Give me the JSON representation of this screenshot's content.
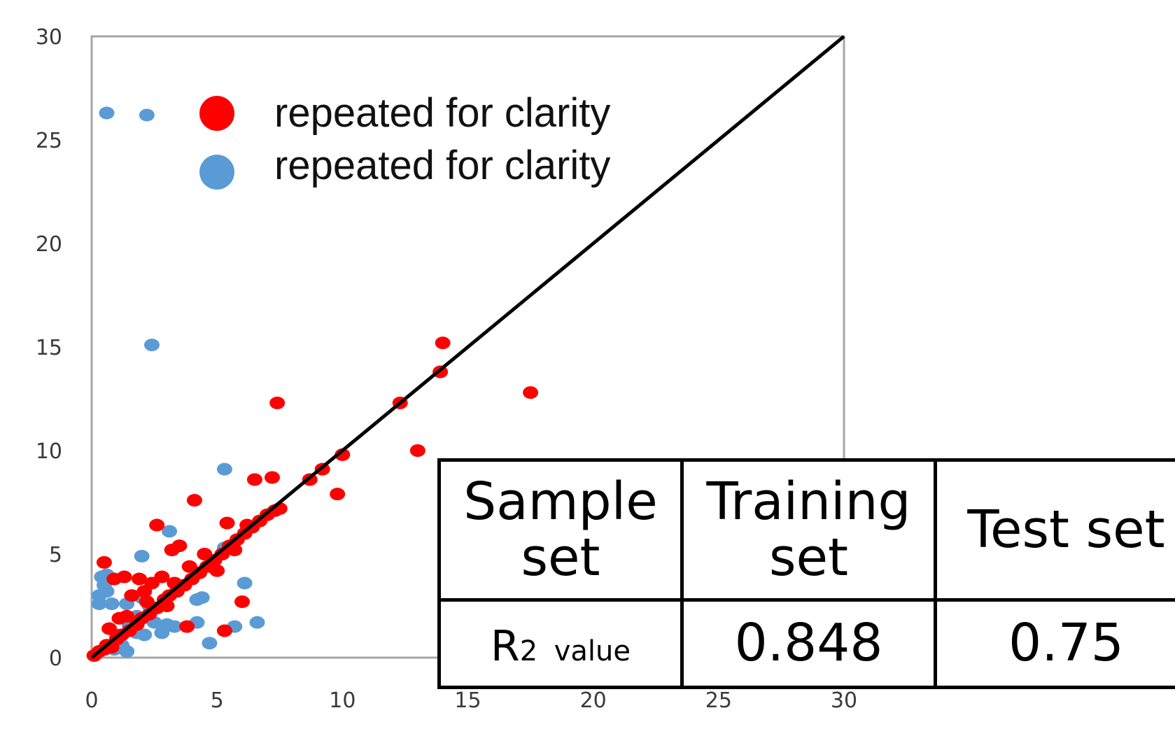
{
  "chart_data": {
    "type": "scatter",
    "title": "",
    "xlabel": "",
    "ylabel": "",
    "xlim": [
      0,
      30
    ],
    "ylim": [
      0,
      30
    ],
    "xticks": [
      "0",
      "5",
      "10",
      "15",
      "20",
      "25",
      "30"
    ],
    "yticks": [
      "0",
      "5",
      "10",
      "15",
      "20",
      "25",
      "30"
    ],
    "grid": false,
    "legend_position": "top-left",
    "reference_line": {
      "x": [
        0,
        30
      ],
      "y": [
        0,
        30
      ],
      "color": "#000000"
    },
    "series": [
      {
        "name": "repeated for clarity",
        "color": "#ff0000",
        "points": [
          [
            0.1,
            0.1
          ],
          [
            0.3,
            0.3
          ],
          [
            0.5,
            0.4
          ],
          [
            0.6,
            0.6
          ],
          [
            0.8,
            0.5
          ],
          [
            1.0,
            0.9
          ],
          [
            1.2,
            1.1
          ],
          [
            1.5,
            1.3
          ],
          [
            1.8,
            1.6
          ],
          [
            2.0,
            1.9
          ],
          [
            2.3,
            2.1
          ],
          [
            2.6,
            2.4
          ],
          [
            2.9,
            2.8
          ],
          [
            3.1,
            3.0
          ],
          [
            3.4,
            3.2
          ],
          [
            3.7,
            3.5
          ],
          [
            4.0,
            3.8
          ],
          [
            4.3,
            4.1
          ],
          [
            4.6,
            4.4
          ],
          [
            4.9,
            4.7
          ],
          [
            5.2,
            5.0
          ],
          [
            5.5,
            5.4
          ],
          [
            5.8,
            5.7
          ],
          [
            6.1,
            6.0
          ],
          [
            6.4,
            6.3
          ],
          [
            6.7,
            6.6
          ],
          [
            7.0,
            6.9
          ],
          [
            7.3,
            7.1
          ],
          [
            7.5,
            7.2
          ],
          [
            0.5,
            4.6
          ],
          [
            0.9,
            3.8
          ],
          [
            1.1,
            1.9
          ],
          [
            1.3,
            3.9
          ],
          [
            1.6,
            3.0
          ],
          [
            1.9,
            3.8
          ],
          [
            2.1,
            3.2
          ],
          [
            2.4,
            3.6
          ],
          [
            2.6,
            6.4
          ],
          [
            2.8,
            3.9
          ],
          [
            3.0,
            2.5
          ],
          [
            3.2,
            5.2
          ],
          [
            3.5,
            5.4
          ],
          [
            3.9,
            4.4
          ],
          [
            4.1,
            7.6
          ],
          [
            4.5,
            5.0
          ],
          [
            5.0,
            4.2
          ],
          [
            5.4,
            6.5
          ],
          [
            5.7,
            5.2
          ],
          [
            6.0,
            2.7
          ],
          [
            6.2,
            6.4
          ],
          [
            6.5,
            8.6
          ],
          [
            7.2,
            8.7
          ],
          [
            7.4,
            12.3
          ],
          [
            8.7,
            8.6
          ],
          [
            9.2,
            9.1
          ],
          [
            9.8,
            7.9
          ],
          [
            10.0,
            9.8
          ],
          [
            12.3,
            12.3
          ],
          [
            13.0,
            10.0
          ],
          [
            13.9,
            13.8
          ],
          [
            14.0,
            15.2
          ],
          [
            17.5,
            12.8
          ],
          [
            0.7,
            1.4
          ],
          [
            1.4,
            2.0
          ],
          [
            2.2,
            2.7
          ],
          [
            3.3,
            3.6
          ],
          [
            3.8,
            1.5
          ],
          [
            5.3,
            1.3
          ]
        ]
      },
      {
        "name": "repeated for clarity",
        "color": "#5b9bd5",
        "points": [
          [
            0.3,
            2.6
          ],
          [
            0.3,
            3.0
          ],
          [
            0.4,
            3.9
          ],
          [
            0.5,
            3.5
          ],
          [
            0.6,
            4.0
          ],
          [
            0.6,
            3.2
          ],
          [
            0.8,
            2.6
          ],
          [
            0.9,
            0.4
          ],
          [
            1.0,
            1.1
          ],
          [
            1.2,
            0.6
          ],
          [
            1.4,
            0.3
          ],
          [
            1.4,
            2.6
          ],
          [
            1.5,
            1.6
          ],
          [
            1.8,
            1.2
          ],
          [
            1.8,
            2.0
          ],
          [
            2.0,
            2.9
          ],
          [
            2.0,
            4.9
          ],
          [
            2.1,
            1.1
          ],
          [
            2.3,
            2.5
          ],
          [
            2.5,
            1.7
          ],
          [
            2.8,
            1.2
          ],
          [
            3.0,
            1.6
          ],
          [
            3.1,
            6.1
          ],
          [
            3.3,
            1.5
          ],
          [
            4.2,
            1.7
          ],
          [
            4.2,
            2.8
          ],
          [
            4.4,
            2.9
          ],
          [
            4.7,
            0.7
          ],
          [
            5.3,
            5.3
          ],
          [
            5.3,
            9.1
          ],
          [
            5.7,
            1.5
          ],
          [
            6.1,
            3.6
          ],
          [
            6.6,
            1.7
          ],
          [
            2.4,
            15.1
          ],
          [
            0.6,
            26.3
          ],
          [
            2.2,
            26.2
          ]
        ]
      }
    ],
    "table": {
      "headers": [
        "Sample set",
        "Training set",
        "Test set"
      ],
      "rows": [
        {
          "label": "R",
          "label_sup": "2",
          "label_sub": "value",
          "values": [
            "0.848",
            "0.75"
          ]
        }
      ]
    }
  }
}
